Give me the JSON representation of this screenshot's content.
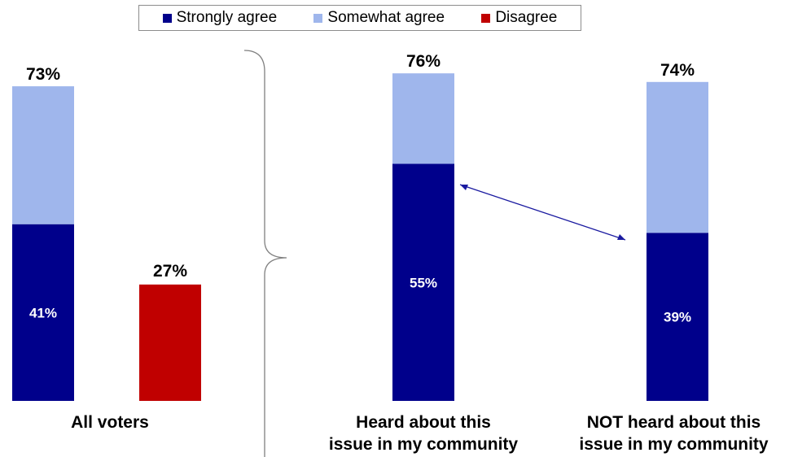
{
  "legend": {
    "items": [
      {
        "label": "Strongly agree",
        "color": "#00008b"
      },
      {
        "label": "Somewhat agree",
        "color": "#9fb6ec"
      },
      {
        "label": "Disagree",
        "color": "#c00000"
      }
    ]
  },
  "categories": {
    "all_voters": "All voters",
    "heard_line1": "Heard about this",
    "heard_line2": "issue in my community",
    "not_heard_line1": "NOT heard about this",
    "not_heard_line2": "issue in my community"
  },
  "chart_data": {
    "type": "bar",
    "stacked": true,
    "colors": {
      "strongly_agree": "#00008b",
      "somewhat_agree": "#9fb6ec",
      "disagree": "#c00000"
    },
    "ylim": [
      0,
      80
    ],
    "bars": [
      {
        "id": "all-agree",
        "group": "All voters",
        "strongly_agree": 41,
        "somewhat_agree": 32,
        "total": 73,
        "strongly_label": "41%",
        "total_label": "73%"
      },
      {
        "id": "all-disagree",
        "group": "All voters",
        "disagree": 27,
        "total": 27,
        "total_label": "27%"
      },
      {
        "id": "heard",
        "group": "Heard about this issue in my community",
        "strongly_agree": 55,
        "somewhat_agree": 21,
        "total": 76,
        "strongly_label": "55%",
        "total_label": "76%"
      },
      {
        "id": "not-heard",
        "group": "NOT heard about this issue in my community",
        "strongly_agree": 39,
        "somewhat_agree": 35,
        "total": 74,
        "strongly_label": "39%",
        "total_label": "74%"
      }
    ],
    "annotations": [
      {
        "type": "double-arrow",
        "from_bar": "heard",
        "to_bar": "not-heard",
        "between": "strongly_agree"
      },
      {
        "type": "brace",
        "note": "groups subgroup bars"
      }
    ]
  }
}
